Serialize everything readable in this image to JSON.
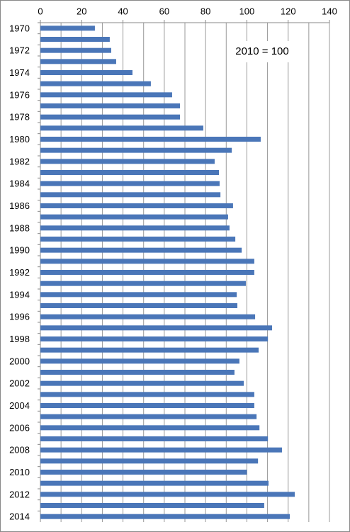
{
  "chart_data": {
    "type": "barh",
    "annotation": "2010 = 100",
    "categories": [
      "1970",
      null,
      "1972",
      null,
      "1974",
      null,
      "1976",
      null,
      "1978",
      null,
      "1980",
      null,
      "1982",
      null,
      "1984",
      null,
      "1986",
      null,
      "1988",
      null,
      "1990",
      null,
      "1992",
      null,
      "1994",
      null,
      "1996",
      null,
      "1998",
      null,
      "2000",
      null,
      "2002",
      null,
      "2004",
      null,
      "2006",
      null,
      "2008",
      null,
      "2010",
      null,
      "2012",
      null,
      "2014"
    ],
    "values": [
      26.4,
      33.6,
      34.3,
      36.7,
      44.6,
      53.5,
      63.8,
      67.6,
      67.6,
      78.9,
      106.7,
      92.7,
      84.4,
      86.5,
      86.8,
      87.2,
      93.3,
      90.9,
      91.6,
      94.4,
      97.5,
      103.6,
      103.6,
      99.5,
      95.1,
      95.4,
      104.0,
      112.2,
      110.2,
      105.7,
      96.4,
      94.0,
      98.5,
      103.6,
      103.6,
      104.7,
      106.1,
      110.2,
      117.0,
      105.4,
      100,
      110.5,
      123.2,
      108.4,
      120.8
    ],
    "color": "#4a76b8",
    "xlim": [
      0,
      140
    ],
    "xticks": [
      0,
      20,
      40,
      60,
      80,
      100,
      120,
      140
    ],
    "minor_xticks": [
      10,
      30,
      50,
      70,
      90,
      110,
      130
    ],
    "grid": true
  }
}
